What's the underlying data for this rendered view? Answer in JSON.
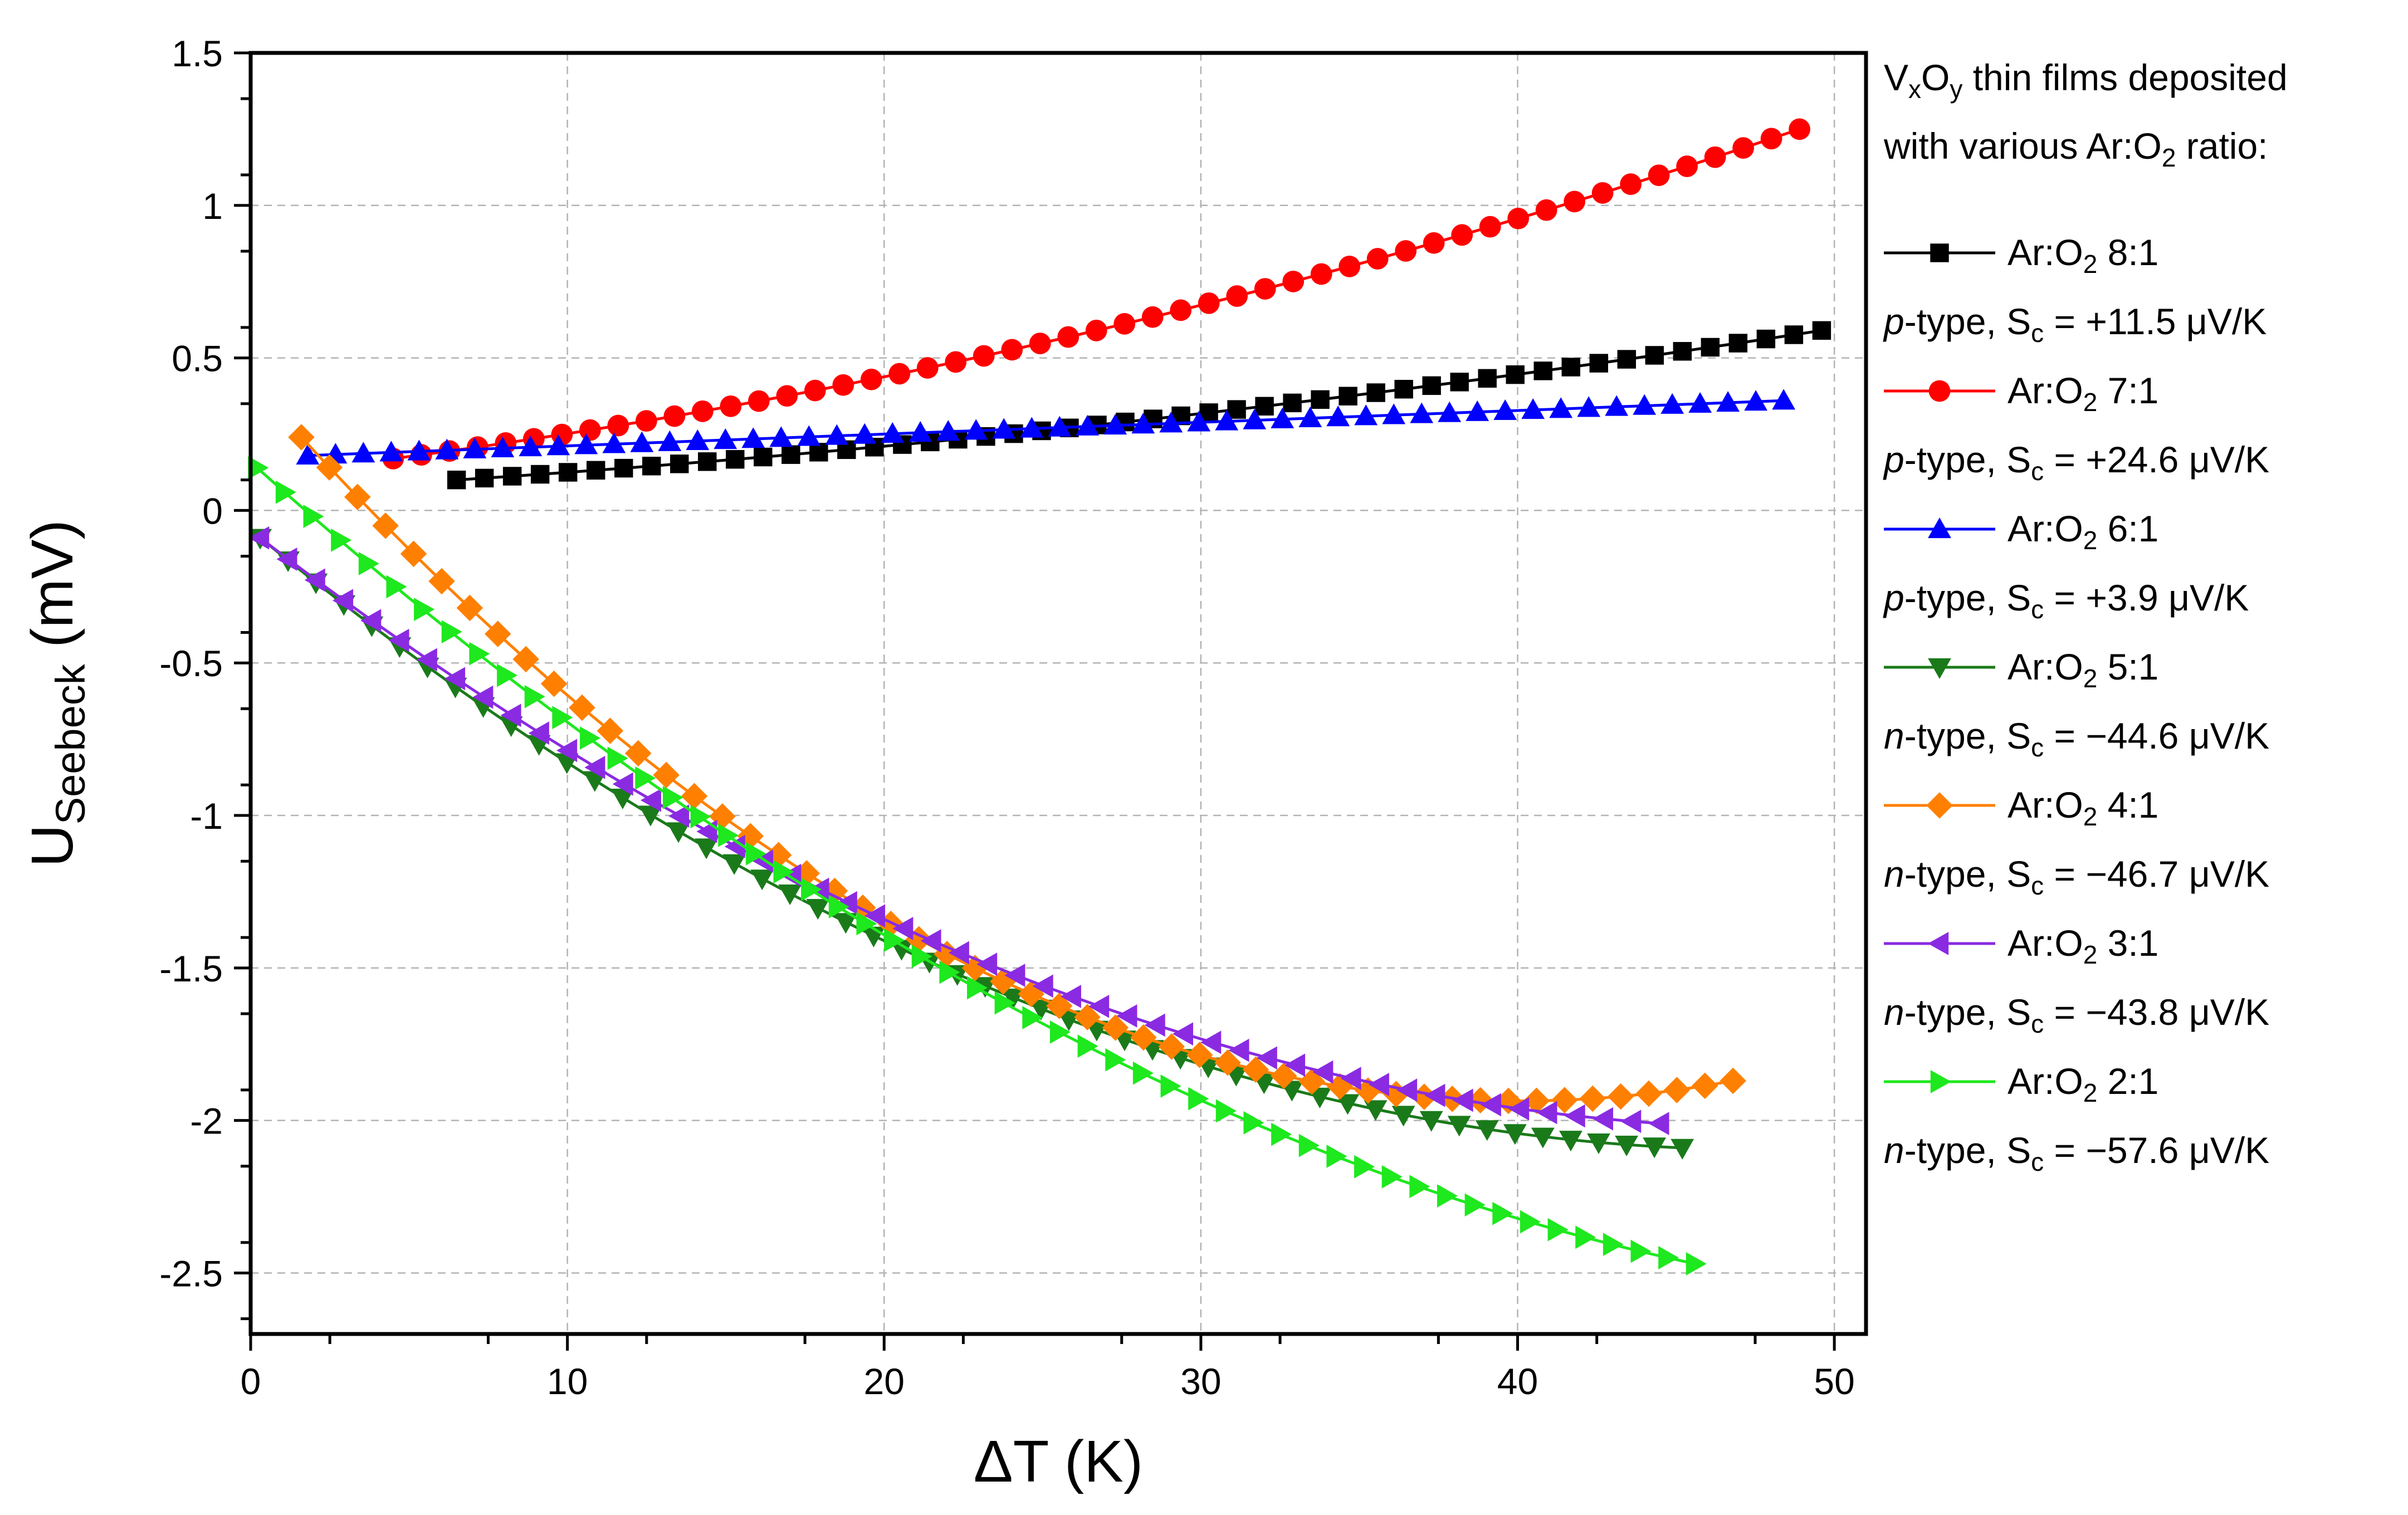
{
  "chart_data": {
    "type": "line",
    "xlabel": "ΔT (K)",
    "ylabel": {
      "main": "U",
      "sub": "Seebeck",
      "unit": " (mV)"
    },
    "xlim": [
      0,
      51
    ],
    "ylim": [
      -2.7,
      1.5
    ],
    "x_ticks": [
      0,
      10,
      20,
      30,
      40,
      50
    ],
    "x_tick_labels": [
      "0",
      "10",
      "20",
      "30",
      "40",
      "50"
    ],
    "y_ticks": [
      1.5,
      1,
      0.5,
      0,
      -0.5,
      -1,
      -1.5,
      -2,
      -2.5
    ],
    "y_tick_labels": [
      "1.5",
      "1",
      "0.5",
      "0",
      "-0.5",
      "-1",
      "-1.5",
      "-2",
      "-2.5"
    ],
    "grid": true,
    "legend_header": {
      "line1": {
        "a": "V",
        "a_sub": "x",
        "b": "O",
        "b_sub": "y",
        "rest": " thin films deposited"
      },
      "line2": {
        "text": "with various Ar:O",
        "sub": "2",
        "rest": " ratio:"
      }
    },
    "series": [
      {
        "name_main": "Ar:O",
        "name_sub": "2",
        "name_rest": " 8:1",
        "color": "#000000",
        "marker": "square",
        "type_label": "p",
        "note_mid": "-type, S",
        "note_sub": "c",
        "note_rest": " = +11.5 μV/K",
        "x_start": 6.5,
        "x_end": 49.6,
        "y_start": 0.1,
        "y_end": 0.59,
        "curve": 0.05
      },
      {
        "name_main": "Ar:O",
        "name_sub": "2",
        "name_rest": " 7:1",
        "color": "#ff0000",
        "marker": "circle",
        "type_label": "p",
        "note_mid": "-type, S",
        "note_sub": "c",
        "note_rest": " = +24.6 μV/K",
        "x_start": 4.5,
        "x_end": 48.9,
        "y_start": 0.17,
        "y_end": 1.25,
        "curve": 0.12
      },
      {
        "name_main": "Ar:O",
        "name_sub": "2",
        "name_rest": " 6:1",
        "color": "#0000ff",
        "marker": "triangle-up",
        "type_label": "p",
        "note_mid": "-type, S",
        "note_sub": "c",
        "note_rest": " = +3.9 μV/K",
        "x_start": 1.8,
        "x_end": 48.4,
        "y_start": 0.18,
        "y_end": 0.36,
        "curve": 0.0
      },
      {
        "name_main": "Ar:O",
        "name_sub": "2",
        "name_rest": " 5:1",
        "color": "#1a7a1a",
        "marker": "triangle-down",
        "type_label": "n",
        "note_mid": "-type, S",
        "note_sub": "c",
        "note_rest": " = −44.6 μV/K",
        "x_start": 0.3,
        "x_end": 45.2,
        "y_start": -0.09,
        "y_end": -2.09,
        "curve": -0.45
      },
      {
        "name_main": "Ar:O",
        "name_sub": "2",
        "name_rest": " 4:1",
        "color": "#ff8000",
        "marker": "diamond",
        "type_label": "n",
        "note_mid": "-type, S",
        "note_sub": "c",
        "note_rest": " = −46.7 μV/K",
        "x_start": 1.6,
        "x_end": 46.8,
        "y_start": 0.24,
        "y_end": -1.87,
        "curve": -0.75
      },
      {
        "name_main": "Ar:O",
        "name_sub": "2",
        "name_rest": " 3:1",
        "color": "#8a2be2",
        "marker": "triangle-left",
        "type_label": "n",
        "note_mid": "-type, S",
        "note_sub": "c",
        "note_rest": " = −43.8 μV/K",
        "x_start": 0.3,
        "x_end": 44.5,
        "y_start": -0.09,
        "y_end": -2.01,
        "curve": -0.4
      },
      {
        "name_main": "Ar:O",
        "name_sub": "2",
        "name_rest": " 2:1",
        "color": "#1ee81e",
        "marker": "triangle-right",
        "type_label": "n",
        "note_mid": "-type, S",
        "note_sub": "c",
        "note_rest": " = −57.6 μV/K",
        "x_start": 0.2,
        "x_end": 45.6,
        "y_start": 0.14,
        "y_end": -2.47,
        "curve": -0.4
      }
    ]
  }
}
